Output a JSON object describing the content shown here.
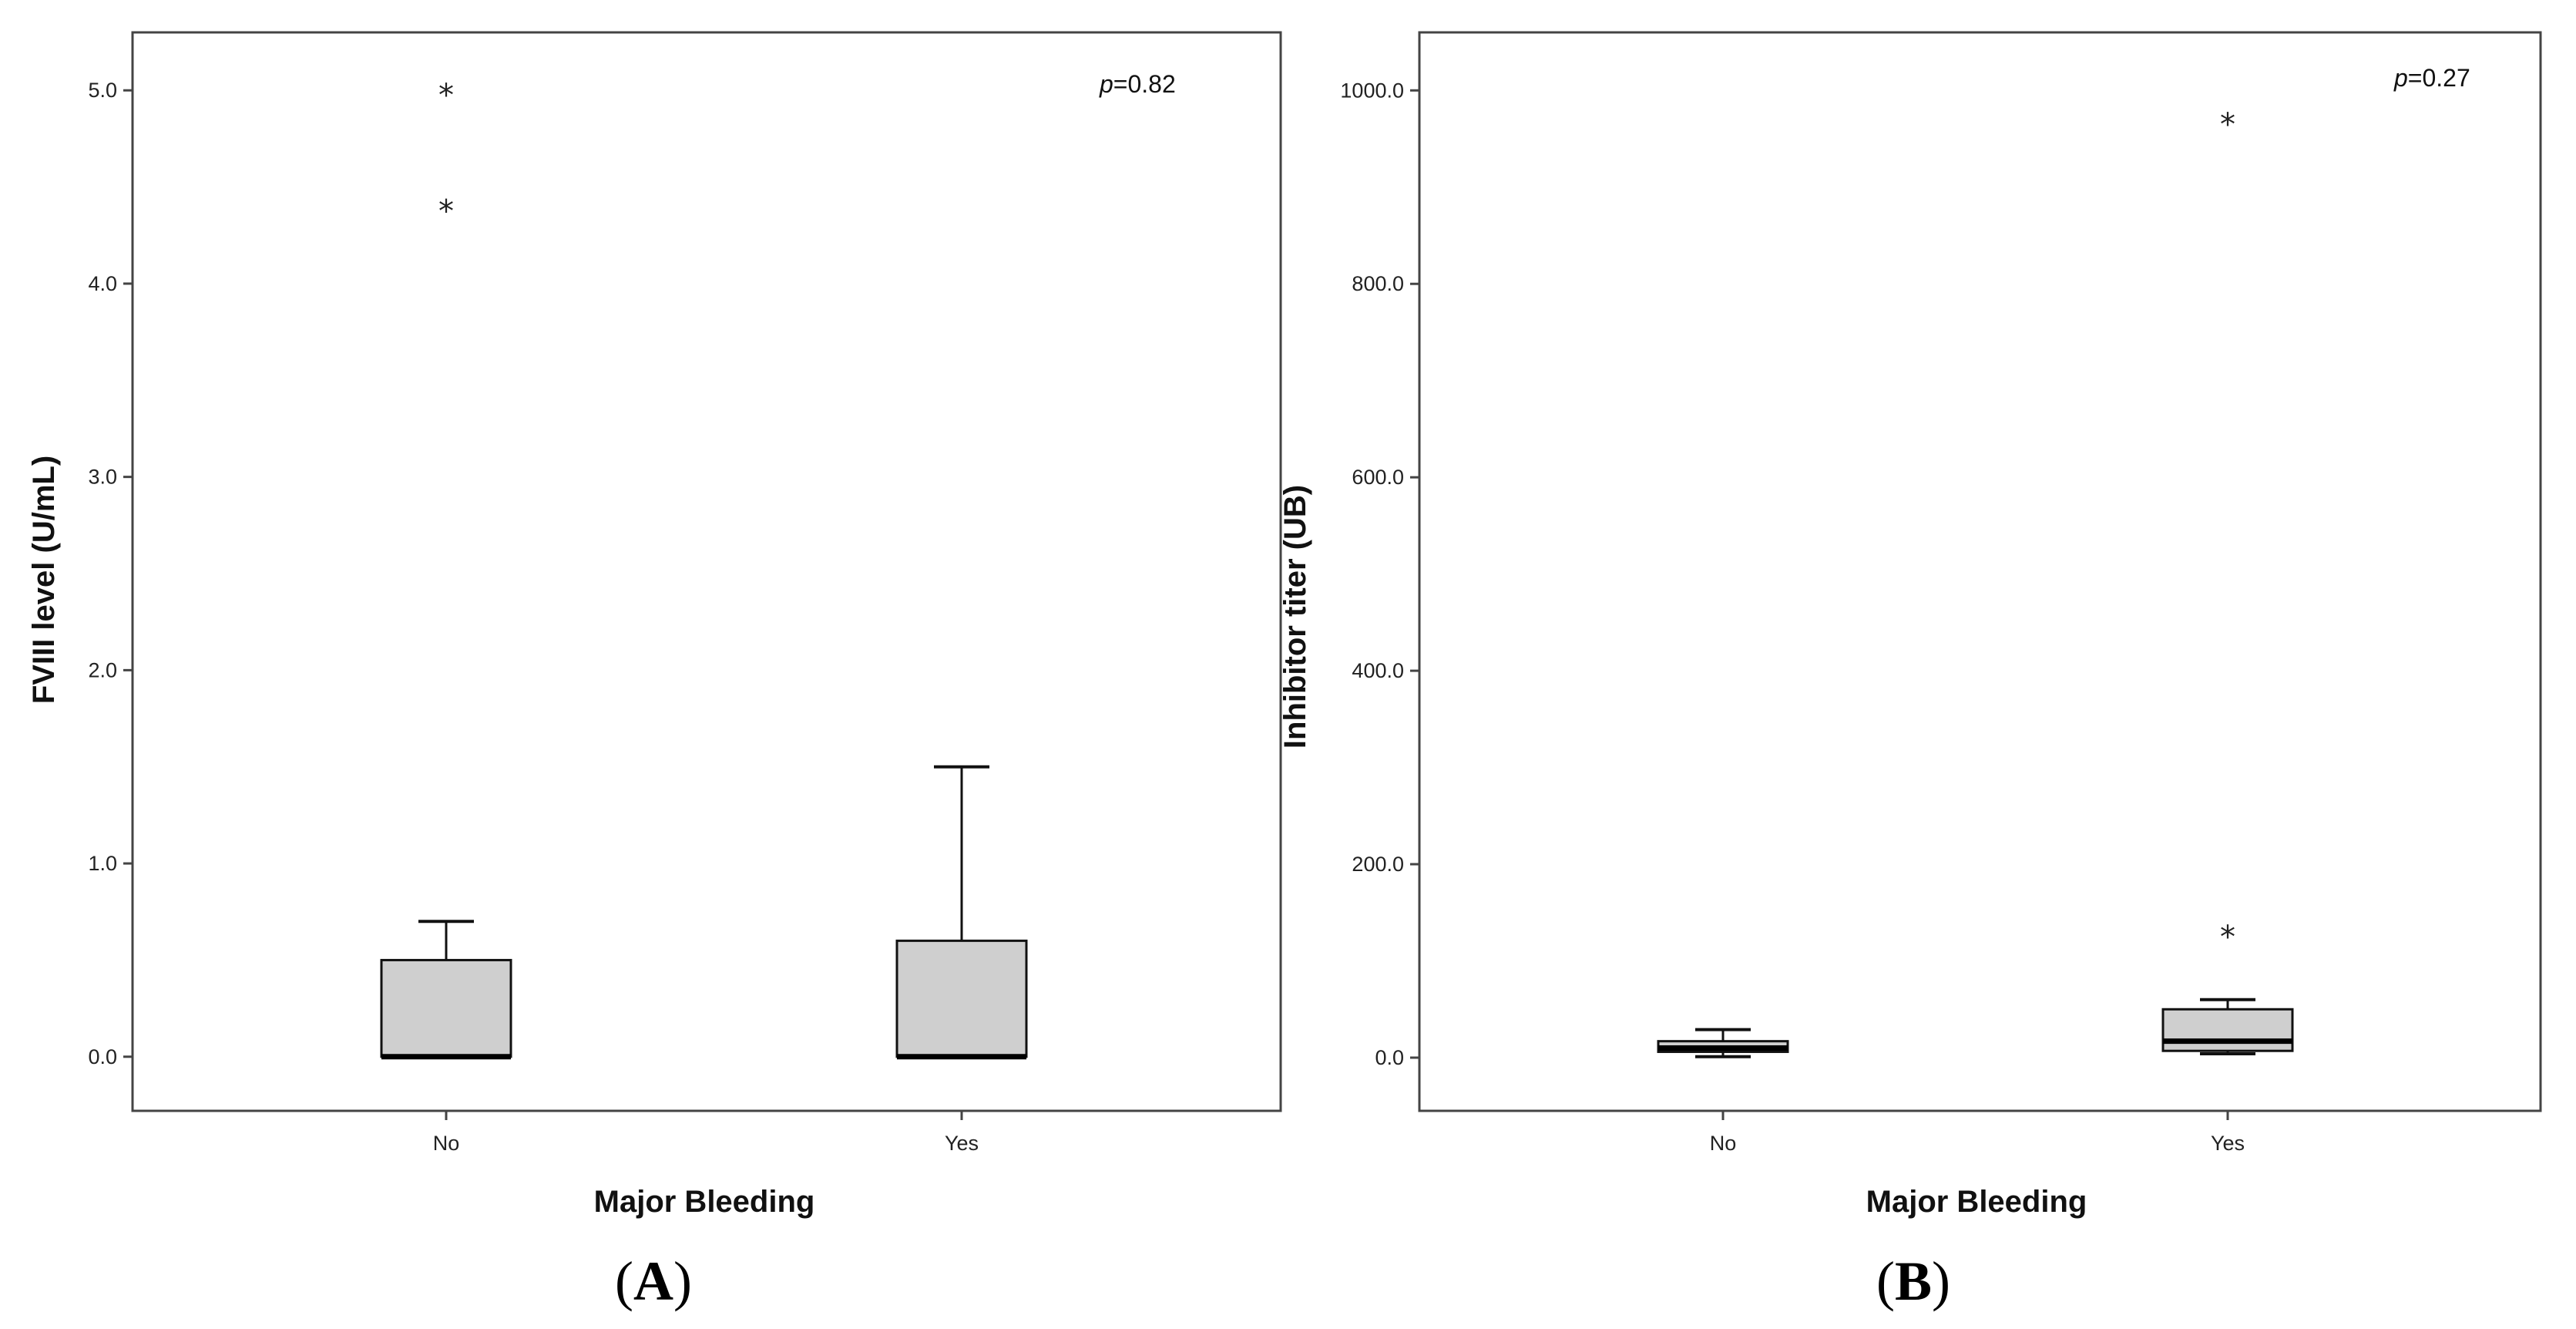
{
  "chart_data": [
    {
      "type": "box",
      "panel_label": "A",
      "xlabel": "Major Bleeding",
      "ylabel": "FVIII level (U/mL)",
      "annotation": {
        "prefix": "p",
        "text": "=0.82"
      },
      "ylim": [
        -0.28,
        5.3
      ],
      "yticks": [
        0.0,
        1.0,
        2.0,
        3.0,
        4.0,
        5.0
      ],
      "ytick_labels": [
        "0.0",
        "1.0",
        "2.0",
        "3.0",
        "4.0",
        "5.0"
      ],
      "categories": [
        "No",
        "Yes"
      ],
      "boxes": [
        {
          "category": "No",
          "whisker_low": 0.0,
          "q1": 0.0,
          "median": 0.0,
          "q3": 0.5,
          "whisker_high": 0.7,
          "outliers": [
            4.4,
            5.0
          ]
        },
        {
          "category": "Yes",
          "whisker_low": 0.0,
          "q1": 0.0,
          "median": 0.0,
          "q3": 0.6,
          "whisker_high": 1.5,
          "outliers": []
        }
      ],
      "outlier_marker": "*",
      "box_fill": "#cfcfcf",
      "grid": false,
      "legend": "none"
    },
    {
      "type": "box",
      "panel_label": "B",
      "xlabel": "Major Bleeding",
      "ylabel": "Inhibitor titer (UB)",
      "annotation": {
        "prefix": "p",
        "text": "=0.27"
      },
      "ylim": [
        -55,
        1060
      ],
      "yticks": [
        0,
        200,
        400,
        600,
        800,
        1000
      ],
      "ytick_labels": [
        "0.0",
        "200.0",
        "400.0",
        "600.0",
        "800.0",
        "1000.0"
      ],
      "categories": [
        "No",
        "Yes"
      ],
      "boxes": [
        {
          "category": "No",
          "whisker_low": 1,
          "q1": 6,
          "median": 10,
          "q3": 17,
          "whisker_high": 29,
          "outliers": []
        },
        {
          "category": "Yes",
          "whisker_low": 4,
          "q1": 7,
          "median": 17,
          "q3": 50,
          "whisker_high": 60,
          "outliers": [
            130,
            970
          ]
        }
      ],
      "outlier_marker": "*",
      "box_fill": "#cfcfcf",
      "grid": false,
      "legend": "none"
    }
  ]
}
